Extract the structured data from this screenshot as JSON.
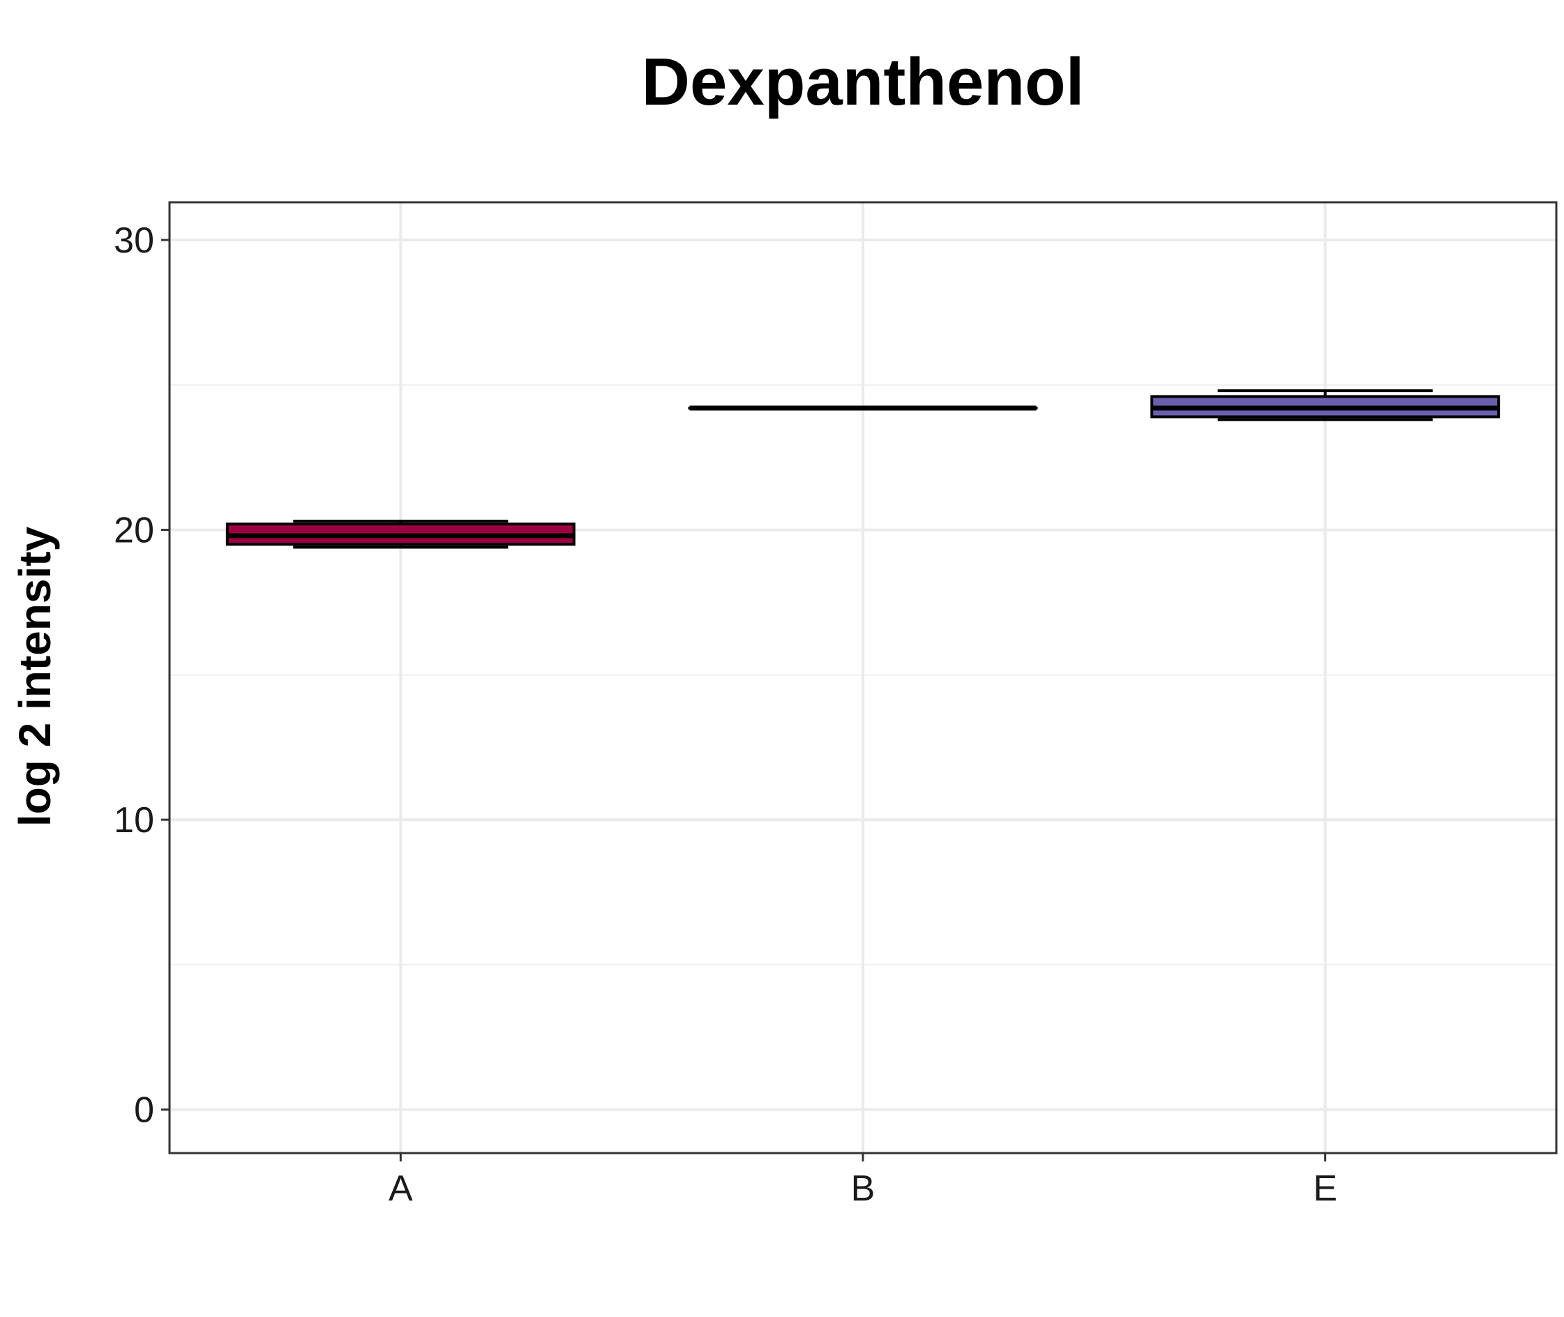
{
  "chart_data": {
    "type": "box",
    "title": "Dexpanthenol",
    "xlabel": "",
    "ylabel": "log 2 intensity",
    "ylim": [
      -1.5,
      31.3
    ],
    "yticks": [
      0,
      10,
      20,
      30
    ],
    "ytick_labels": [
      "0",
      "10",
      "20",
      "30"
    ],
    "grid": true,
    "legend": "none",
    "categories": [
      "A",
      "B",
      "E"
    ],
    "boxes": [
      {
        "category": "A",
        "min": 19.4,
        "q1": 19.5,
        "median": 19.8,
        "q3": 20.2,
        "max": 20.3,
        "color": "#9e0142"
      },
      {
        "category": "B",
        "min": 24.2,
        "q1": 24.2,
        "median": 24.2,
        "q3": 24.2,
        "max": 24.2,
        "color": "#000000"
      },
      {
        "category": "E",
        "min": 23.8,
        "q1": 23.9,
        "median": 24.2,
        "q3": 24.6,
        "max": 24.8,
        "color": "#6a5fae"
      }
    ]
  }
}
